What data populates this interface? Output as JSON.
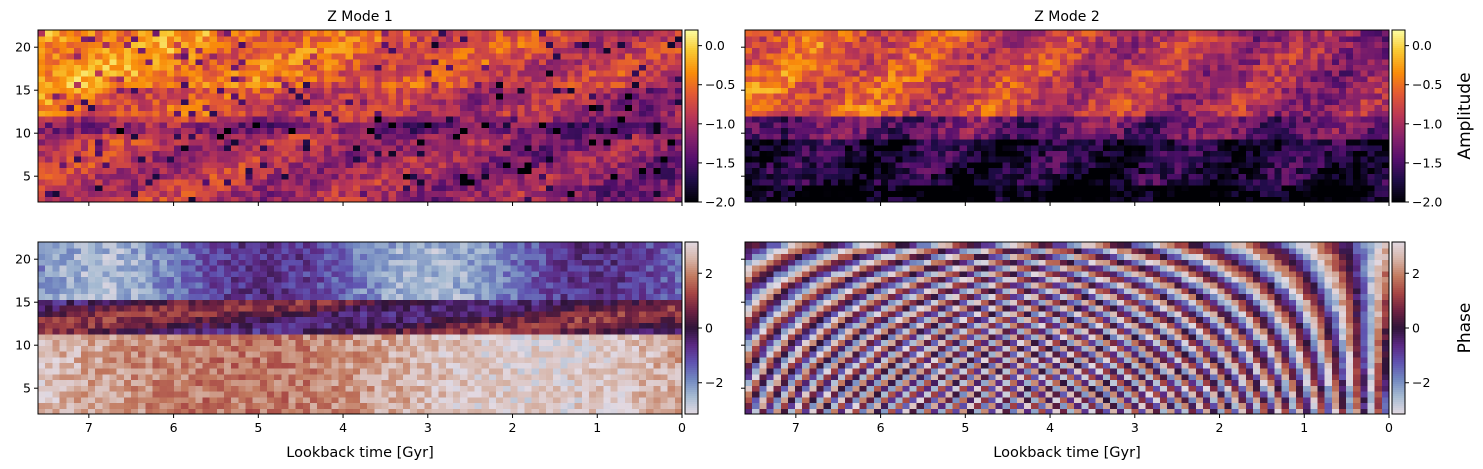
{
  "chart_data": [
    {
      "type": "heatmap",
      "id": "amp1",
      "title": "Z Mode 1",
      "xlabel": "",
      "ylabel": "",
      "xlim": [
        7.6,
        0
      ],
      "ylim": [
        2,
        22
      ],
      "xticks": [
        7,
        6,
        5,
        4,
        3,
        2,
        1,
        0
      ],
      "xticklabels_visible": false,
      "yticks": [
        5,
        10,
        15,
        20
      ],
      "yticklabels_visible": true,
      "colormap": "inferno",
      "color_range": [
        -2.0,
        0.2
      ],
      "colorbar": {
        "ticks": [
          "0.0",
          "−0.5",
          "−1.0",
          "−1.5",
          "−2.0"
        ],
        "tick_values": [
          0,
          -0.5,
          -1.0,
          -1.5,
          -2.0
        ],
        "label": ""
      }
    },
    {
      "type": "heatmap",
      "id": "amp2",
      "title": "Z Mode 2",
      "xlabel": "",
      "ylabel": "",
      "xlim": [
        7.6,
        0
      ],
      "ylim": [
        2,
        22
      ],
      "xticks": [
        7,
        6,
        5,
        4,
        3,
        2,
        1,
        0
      ],
      "xticklabels_visible": false,
      "yticks": [
        5,
        10,
        15,
        20
      ],
      "yticklabels_visible": false,
      "colormap": "inferno",
      "color_range": [
        -2.0,
        0.2
      ],
      "colorbar": {
        "ticks": [
          "0.0",
          "−0.5",
          "−1.0",
          "−1.5",
          "−2.0"
        ],
        "tick_values": [
          0,
          -0.5,
          -1.0,
          -1.5,
          -2.0
        ],
        "label": "Amplitude"
      }
    },
    {
      "type": "heatmap",
      "id": "ph1",
      "title": "",
      "xlabel": "Lookback time [Gyr]",
      "ylabel": "",
      "xlim": [
        7.6,
        0
      ],
      "ylim": [
        2,
        22
      ],
      "xticks": [
        7,
        6,
        5,
        4,
        3,
        2,
        1,
        0
      ],
      "xticklabels_visible": true,
      "yticks": [
        5,
        10,
        15,
        20
      ],
      "yticklabels_visible": true,
      "colormap": "twilight",
      "color_range": [
        -3.14159,
        3.14159
      ],
      "colorbar": {
        "ticks": [
          "2",
          "0",
          "−2"
        ],
        "tick_values": [
          2,
          0,
          -2
        ],
        "label": ""
      }
    },
    {
      "type": "heatmap",
      "id": "ph2",
      "title": "",
      "xlabel": "Lookback time [Gyr]",
      "ylabel": "",
      "xlim": [
        7.6,
        0
      ],
      "ylim": [
        2,
        22
      ],
      "xticks": [
        7,
        6,
        5,
        4,
        3,
        2,
        1,
        0
      ],
      "xticklabels_visible": true,
      "yticks": [
        5,
        10,
        15,
        20
      ],
      "yticklabels_visible": false,
      "colormap": "twilight",
      "color_range": [
        -3.14159,
        3.14159
      ],
      "colorbar": {
        "ticks": [
          "2",
          "0",
          "−2"
        ],
        "tick_values": [
          2,
          0,
          -2
        ],
        "label": "Phase"
      }
    }
  ]
}
